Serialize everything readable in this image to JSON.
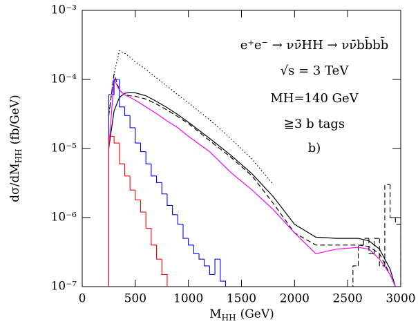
{
  "chart_data": {
    "type": "line",
    "annotations": [
      "e⁺e⁻ → νν̄HH → νν̄bb̄bb̄",
      "√s = 3 TeV",
      "MH=140 GeV",
      "≧3 b tags",
      "b)"
    ],
    "x_label": {
      "main": "M",
      "sub": "HH",
      "unit": "(GeV)"
    },
    "y_label": {
      "main": "dσ/dM",
      "sub": "HH",
      "unit": "(fb/GeV)"
    },
    "xlim": [
      0,
      3000
    ],
    "xticks": [
      0,
      500,
      1000,
      1500,
      2000,
      2500,
      3000
    ],
    "ylim": [
      1e-07,
      0.001
    ],
    "ylog": true,
    "yticks": [
      {
        "value": 0.001,
        "label": "10⁻³"
      },
      {
        "value": 0.0001,
        "label": "10⁻⁴"
      },
      {
        "value": 1e-05,
        "label": "10⁻⁵"
      },
      {
        "value": 1e-06,
        "label": "10⁻⁶"
      },
      {
        "value": 1e-07,
        "label": "10⁻⁷"
      }
    ],
    "x": [
      250,
      300,
      350,
      400,
      450,
      500,
      600,
      700,
      800,
      900,
      1000,
      1200,
      1400,
      1600,
      1800,
      2000,
      2200,
      2400,
      2600,
      2700,
      2800,
      2900,
      2950
    ],
    "series": [
      {
        "color": "#000000",
        "dash": "solid",
        "values": [
          1e-05,
          3.5e-05,
          5.5e-05,
          6.3e-05,
          6.5e-05,
          6.4e-05,
          5.8e-05,
          4.8e-05,
          3.9e-05,
          3.1e-05,
          2.4e-05,
          1.4e-05,
          8e-06,
          4.3e-06,
          2e-06,
          8e-07,
          5.2e-07,
          5e-07,
          5e-07,
          4.6e-07,
          3.5e-07,
          1.8e-07,
          1e-07
        ]
      },
      {
        "color": "#000000",
        "dash": "dashed",
        "values": [
          3e-05,
          0.00012,
          7e-05,
          6e-05,
          5.8e-05,
          5.7e-05,
          5.2e-05,
          4.4e-05,
          3.6e-05,
          2.9e-05,
          2.3e-05,
          1.3e-05,
          7.5e-06,
          4e-06,
          1.6e-06,
          6e-07,
          4e-07,
          4e-07,
          4e-07,
          3.8e-07,
          3e-07,
          1.5e-07,
          1e-07
        ]
      },
      {
        "color": "#000000",
        "dash": "dotted",
        "values": [
          3e-05,
          0.00012,
          0.00026,
          0.00024,
          0.00021,
          0.00018,
          0.00014,
          0.000105,
          8e-05,
          6e-05,
          4.6e-05,
          2.6e-05,
          1.4e-05,
          7e-06,
          3e-06,
          null,
          null,
          null,
          null,
          null,
          null,
          null,
          null
        ]
      },
      {
        "color": "#ff00ff",
        "dash": "solid",
        "values": [
          1e-05,
          0.0001,
          7e-05,
          6e-05,
          5.5e-05,
          5e-05,
          4e-05,
          3.2e-05,
          2.5e-05,
          2e-05,
          1.5e-05,
          9e-06,
          4.5e-06,
          2.5e-06,
          1.3e-06,
          6e-07,
          3e-07,
          3.5e-07,
          3.7e-07,
          3.5e-07,
          2.5e-07,
          1.5e-07,
          1e-07
        ]
      }
    ],
    "histograms": [
      {
        "color": "#0000ff",
        "dash": "solid",
        "bins": [
          250,
          300,
          350,
          400,
          450,
          500,
          550,
          600,
          650,
          700,
          750,
          800,
          850,
          900,
          950,
          1000,
          1050,
          1100,
          1150,
          1200,
          1250,
          1300,
          1350
        ],
        "counts": [
          6e-05,
          0.0001,
          4e-05,
          3e-05,
          2e-05,
          1.2e-05,
          9e-06,
          6e-06,
          4e-06,
          3.2e-06,
          2.2e-06,
          1.5e-06,
          1.1e-06,
          8e-07,
          5e-07,
          4e-07,
          3e-07,
          2.5e-07,
          2e-07,
          1.5e-07,
          2.5e-07,
          1.2e-07
        ]
      },
      {
        "color": "#ff0000",
        "dash": "solid",
        "bins": [
          250,
          300,
          350,
          400,
          450,
          500,
          550,
          600,
          650,
          700,
          750,
          800
        ],
        "counts": [
          1.5e-05,
          1.2e-05,
          6e-06,
          4e-06,
          2.5e-06,
          1.8e-06,
          1.2e-06,
          7e-07,
          4e-07,
          2.5e-07,
          1.5e-07
        ]
      },
      {
        "color": "#000000",
        "dash": "dashed",
        "bins": [
          2550,
          2600,
          2650,
          2700,
          2750,
          2800,
          2850,
          2900,
          2950,
          3000
        ],
        "counts": [
          2e-07,
          4e-07,
          5e-07,
          3e-07,
          5e-07,
          2e-07,
          3e-06,
          1e-06,
          8e-07
        ]
      }
    ]
  }
}
